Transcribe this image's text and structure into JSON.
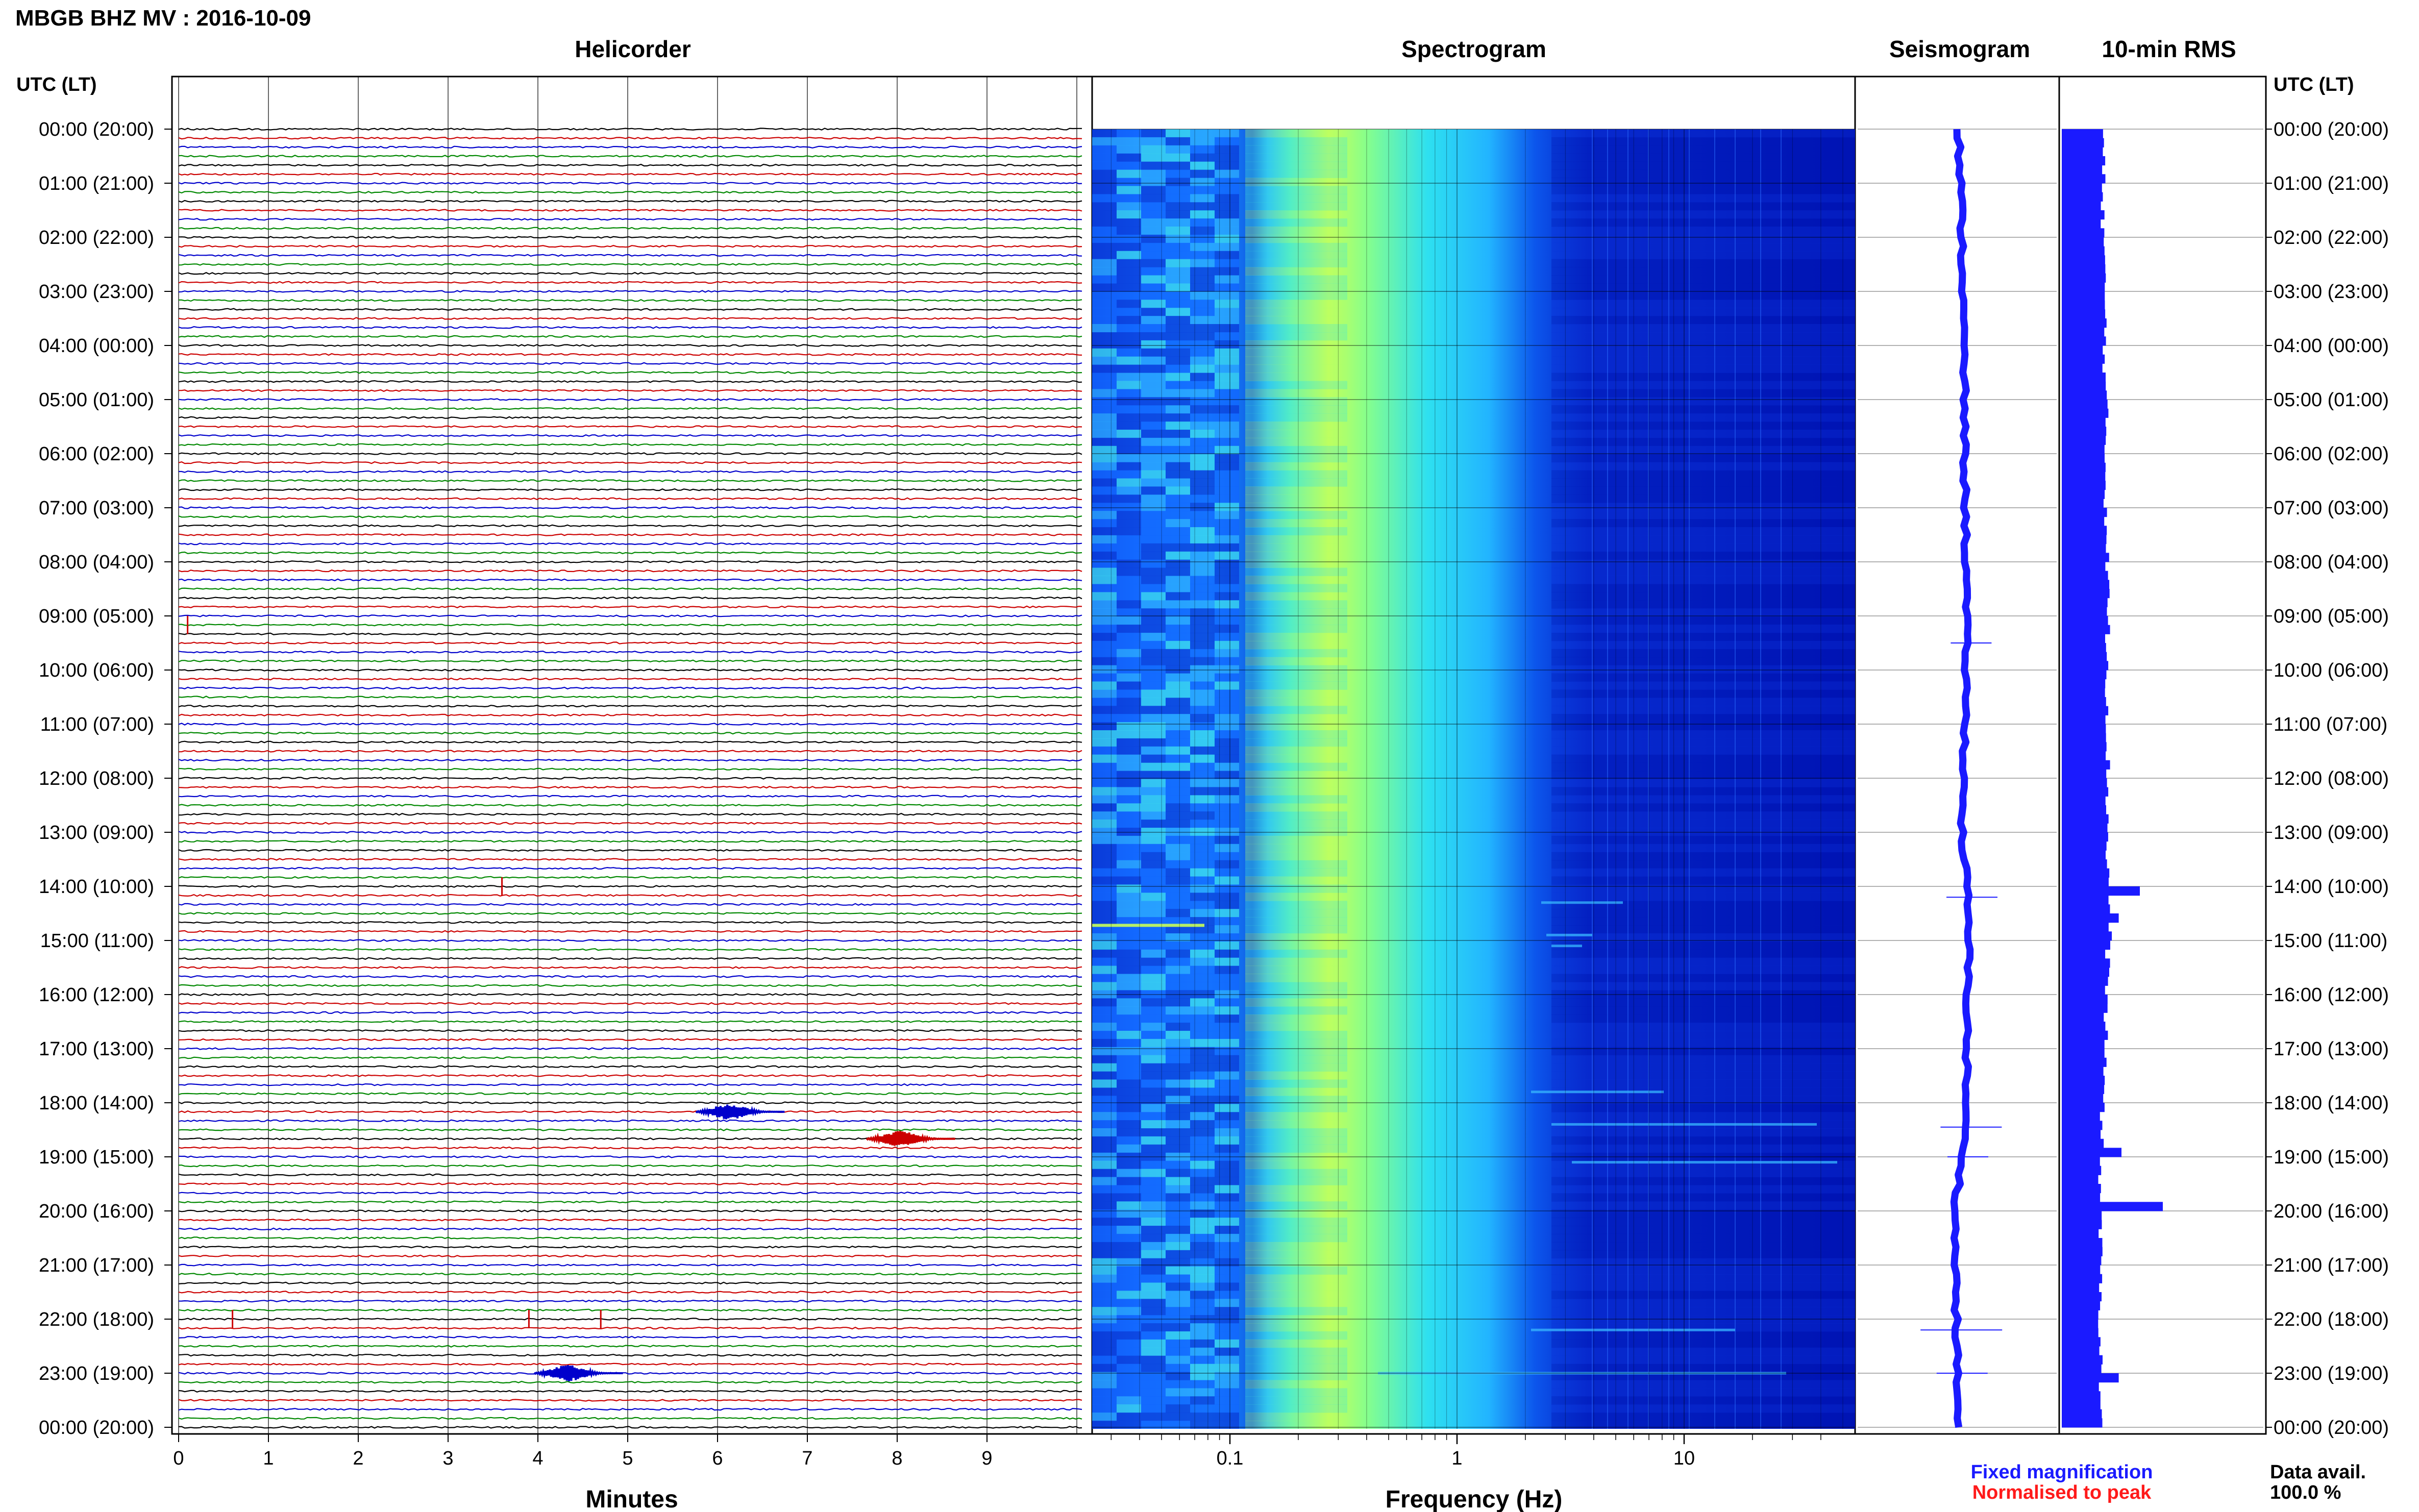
{
  "page_title": "MBGB BHZ MV : 2016-10-09",
  "panels": {
    "helicorder": "Helicorder",
    "spectrogram": "Spectrogram",
    "seismogram": "Seismogram",
    "rms": "10-min RMS"
  },
  "axis_header": "UTC (LT)",
  "time_labels": [
    "00:00 (20:00)",
    "01:00 (21:00)",
    "02:00 (22:00)",
    "03:00 (23:00)",
    "04:00 (00:00)",
    "05:00 (01:00)",
    "06:00 (02:00)",
    "07:00 (03:00)",
    "08:00 (04:00)",
    "09:00 (05:00)",
    "10:00 (06:00)",
    "11:00 (07:00)",
    "12:00 (08:00)",
    "13:00 (09:00)",
    "14:00 (10:00)",
    "15:00 (11:00)",
    "16:00 (12:00)",
    "17:00 (13:00)",
    "18:00 (14:00)",
    "19:00 (15:00)",
    "20:00 (16:00)",
    "21:00 (17:00)",
    "22:00 (18:00)",
    "23:00 (19:00)",
    "00:00 (20:00)"
  ],
  "legend": {
    "fixed": "Fixed magnification",
    "normalised": "Normalised to peak",
    "fixed_color": "#1a1aff",
    "normalised_color": "#ff1a1a"
  },
  "data_avail": {
    "label": "Data avail.",
    "value": "100.0 %"
  },
  "colors": {
    "trace_cycle": [
      "#000000",
      "#cc0000",
      "#0000cc",
      "#008800"
    ],
    "seismogram": "#1a1aff",
    "rms": "#1a1aff"
  },
  "chart_data": [
    {
      "type": "line",
      "title": "Helicorder",
      "xlabel": "Minutes",
      "x_ticks": [
        "0",
        "1",
        "2",
        "3",
        "4",
        "5",
        "6",
        "7",
        "8",
        "9"
      ],
      "xlim": [
        0,
        10
      ],
      "rows_per_hour": 6,
      "row_minutes": 10,
      "events": [
        {
          "time": "18:10",
          "minute": 6.1,
          "color": "#0000cc",
          "amplitude": "large"
        },
        {
          "time": "18:40",
          "minute": 8.0,
          "color": "#cc0000",
          "amplitude": "large"
        },
        {
          "time": "23:00",
          "minute": 4.3,
          "color": "#0000cc",
          "amplitude": "large"
        },
        {
          "time": "22:00",
          "minute": 0.6,
          "color": "#cc0000",
          "amplitude": "spike"
        },
        {
          "time": "22:00",
          "minute": 3.9,
          "color": "#cc0000",
          "amplitude": "spike"
        },
        {
          "time": "22:00",
          "minute": 4.7,
          "color": "#cc0000",
          "amplitude": "spike"
        },
        {
          "time": "09:10",
          "minute": 0.1,
          "color": "#cc0000",
          "amplitude": "spike"
        },
        {
          "time": "14:00",
          "minute": 3.6,
          "color": "#cc0000",
          "amplitude": "spike"
        }
      ]
    },
    {
      "type": "heatmap",
      "title": "Spectrogram",
      "xlabel": "Frequency (Hz)",
      "x_ticks": [
        "0.1",
        "1",
        "10"
      ],
      "x_scale": "log",
      "xlim": [
        0.02,
        50
      ],
      "colormap": [
        "#0000a0",
        "#0050ff",
        "#00c0ff",
        "#40ffb0",
        "#d0ff40"
      ]
    },
    {
      "type": "line",
      "title": "Seismogram",
      "hourly_offset": [
        0.0,
        0.02,
        0.04,
        0.05,
        0.06,
        0.07,
        0.07,
        0.08,
        0.09,
        0.09,
        0.09,
        0.08,
        0.06,
        0.04,
        0.1,
        0.12,
        0.11,
        0.1,
        0.09,
        0.05,
        -0.05,
        -0.04,
        -0.03,
        -0.02,
        -0.01
      ]
    },
    {
      "type": "bar",
      "title": "10-min RMS",
      "hourly_rms": [
        0.45,
        0.45,
        0.46,
        0.47,
        0.47,
        0.48,
        0.48,
        0.49,
        0.5,
        0.5,
        0.5,
        0.5,
        0.5,
        0.5,
        0.52,
        0.5,
        0.48,
        0.46,
        0.44,
        0.42,
        0.42,
        0.42,
        0.42,
        0.42,
        0.42
      ],
      "peaks": [
        {
          "time": "14:00",
          "value": 0.85
        },
        {
          "time": "14:30",
          "value": 0.62
        },
        {
          "time": "18:50",
          "value": 0.65
        },
        {
          "time": "19:50",
          "value": 1.1
        },
        {
          "time": "23:00",
          "value": 0.62
        }
      ]
    }
  ]
}
